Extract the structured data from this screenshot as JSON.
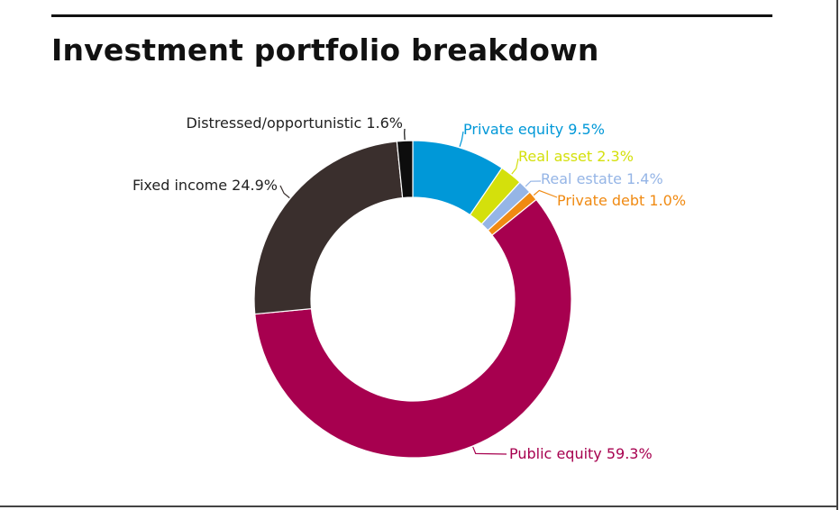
{
  "title": "Investment portfolio breakdown",
  "chart_data": {
    "type": "pie",
    "title": "Investment portfolio breakdown",
    "slices": [
      {
        "name": "Private equity",
        "value": 9.5,
        "label": "Private equity 9.5%",
        "color": "#0098d8"
      },
      {
        "name": "Real asset",
        "value": 2.3,
        "label": "Real asset 2.3%",
        "color": "#d4e00c"
      },
      {
        "name": "Real estate",
        "value": 1.4,
        "label": "Real estate 1.4%",
        "color": "#95b5e6"
      },
      {
        "name": "Private debt",
        "value": 1.0,
        "label": "Private debt 1.0%",
        "color": "#f08a12"
      },
      {
        "name": "Public equity",
        "value": 59.3,
        "label": "Public equity 59.3%",
        "color": "#a7004f"
      },
      {
        "name": "Fixed income",
        "value": 24.9,
        "label": "Fixed income 24.9%",
        "color": "#3a2f2d"
      },
      {
        "name": "Distressed/opportunistic",
        "value": 1.6,
        "label": "Distressed/opportunistic 1.6%",
        "color": "#0d0d0d"
      }
    ],
    "donut": true,
    "legend": "none"
  }
}
